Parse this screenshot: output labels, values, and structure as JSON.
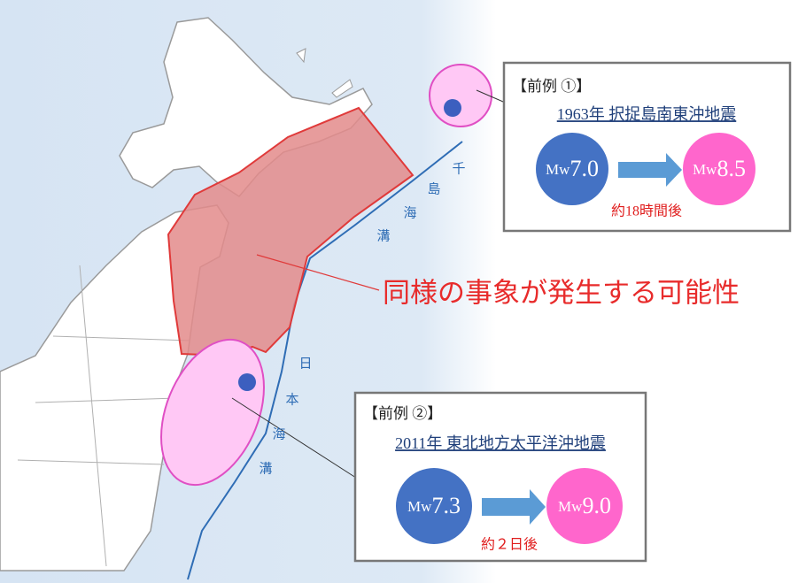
{
  "map": {
    "annotation": "同様の事象が発生する可能性",
    "kuril_trench_label": [
      "千",
      "島",
      "海",
      "溝"
    ],
    "japan_trench_label": [
      "日",
      "本",
      "海",
      "溝"
    ]
  },
  "precedents": [
    {
      "header": "【前例 ①】",
      "title": "1963年 択捉島南東沖地震",
      "before": {
        "prefix": "Mw",
        "magnitude": "7.0"
      },
      "after": {
        "prefix": "Mw",
        "magnitude": "8.5"
      },
      "interval": "約18時間後"
    },
    {
      "header": "【前例 ②】",
      "title": "2011年 東北地方太平洋沖地震",
      "before": {
        "prefix": "Mw",
        "magnitude": "7.3"
      },
      "after": {
        "prefix": "Mw",
        "magnitude": "9.0"
      },
      "interval": "約２日後"
    }
  ]
}
